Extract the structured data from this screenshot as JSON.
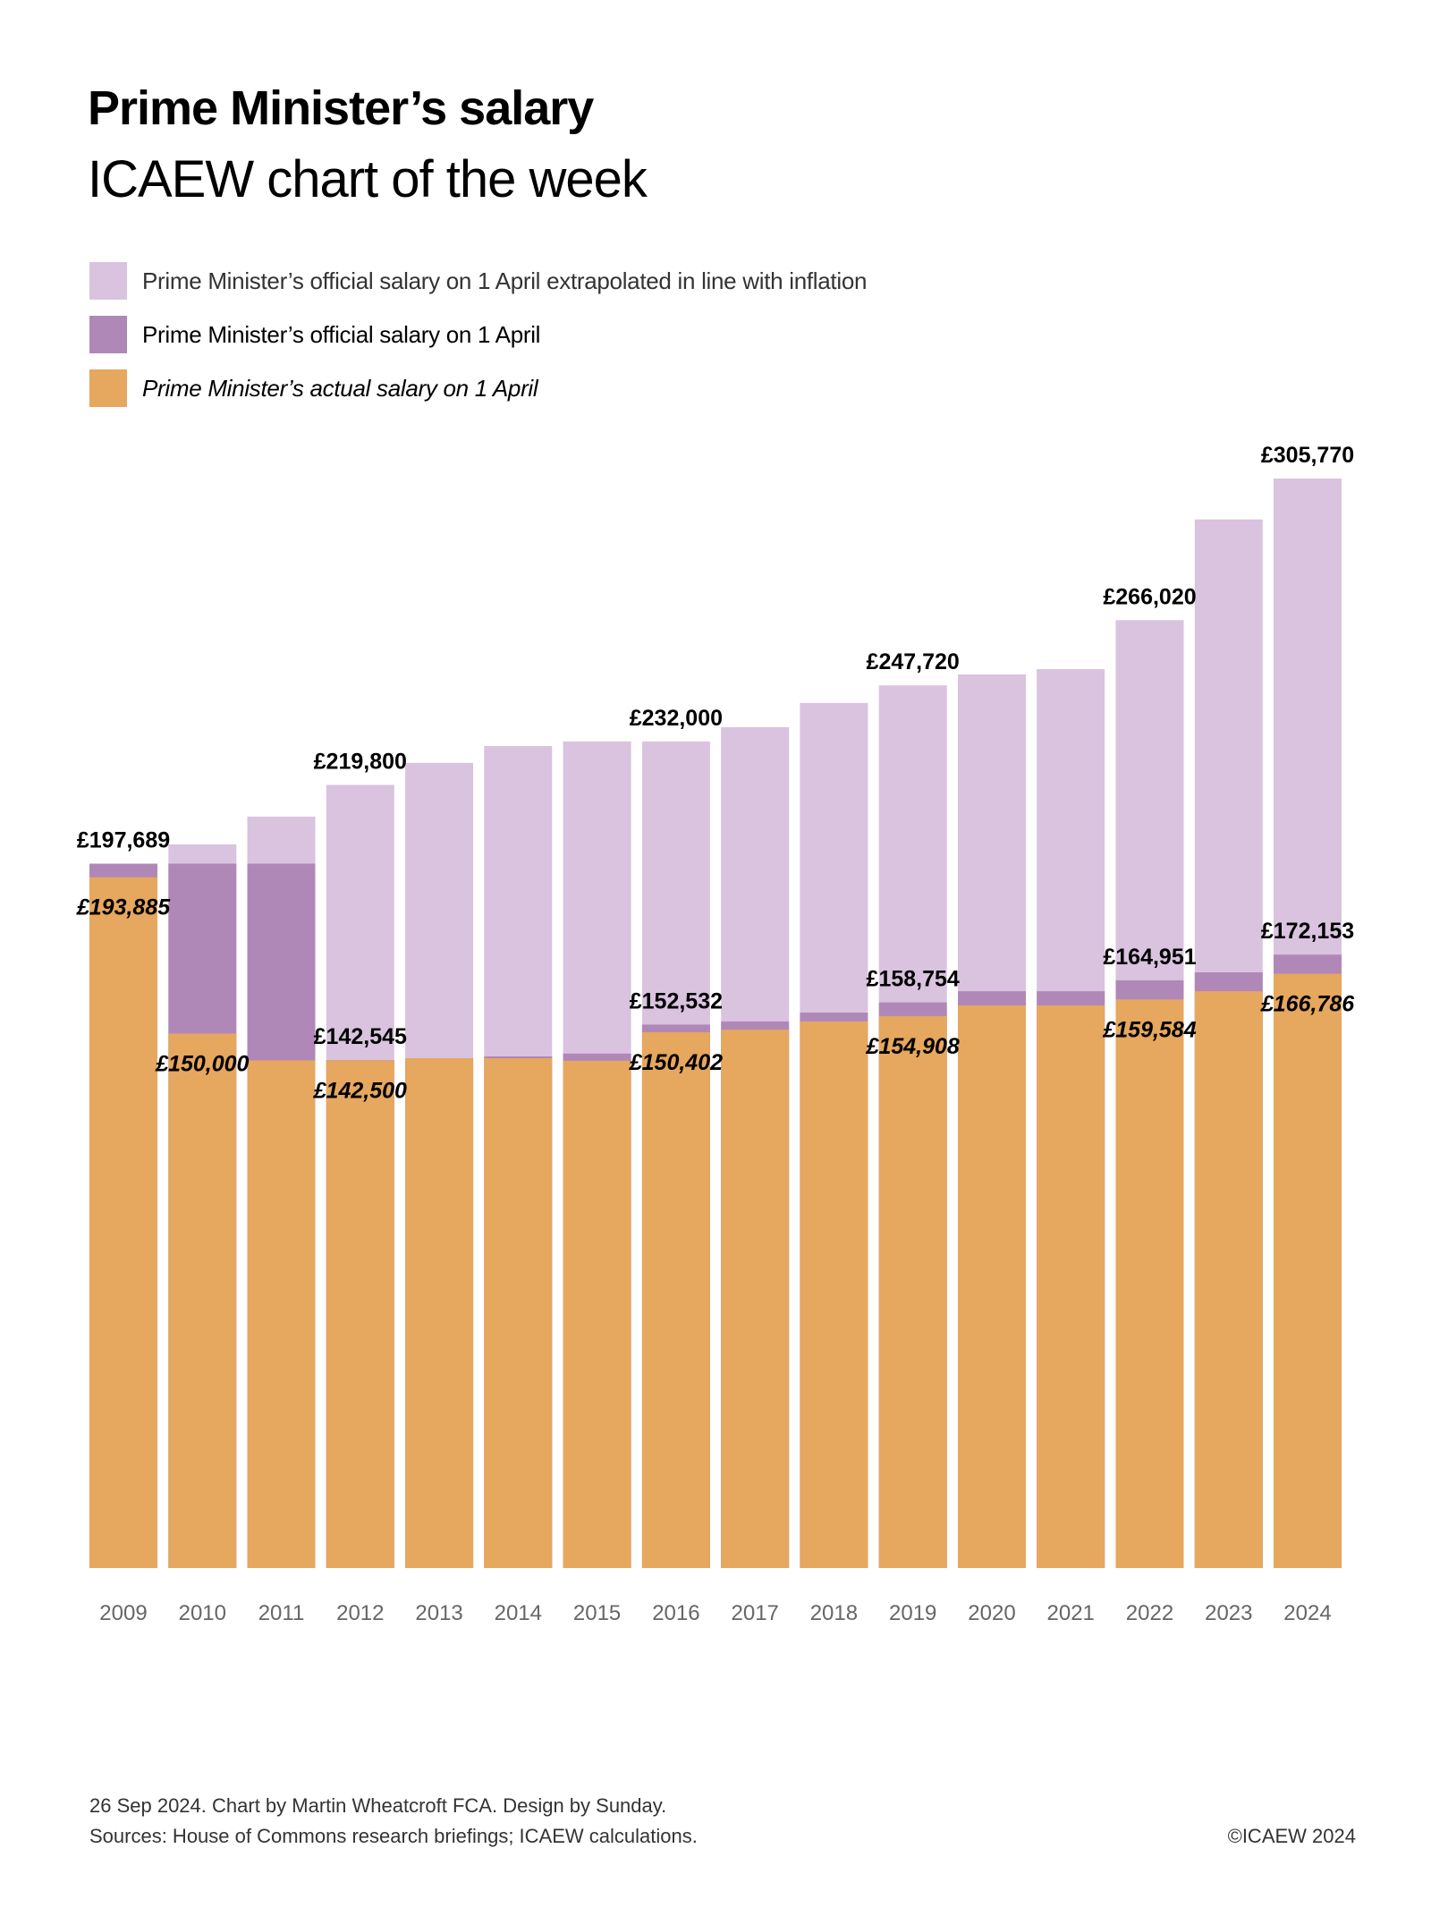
{
  "header": {
    "title": "Prime Minister’s salary",
    "subtitle": "ICAEW chart of the week"
  },
  "legend": [
    {
      "label": "Prime Minister’s official salary on 1 April extrapolated in line with inflation",
      "color": "#D9C3DE"
    },
    {
      "label": "Prime Minister’s official salary on 1 April",
      "color": "#B088B8"
    },
    {
      "label": "Prime Minister’s actual salary on 1 April",
      "color": "#E6A75E"
    }
  ],
  "chart_data": {
    "type": "bar",
    "stacking": "overlapping",
    "title": "Prime Minister’s salary",
    "subtitle": "ICAEW chart of the week",
    "xlabel": "",
    "ylabel": "",
    "ylim": [
      0,
      305770
    ],
    "grid": false,
    "legend_position": "top-left",
    "categories": [
      "2009",
      "2010",
      "2011",
      "2012",
      "2013",
      "2014",
      "2015",
      "2016",
      "2017",
      "2018",
      "2019",
      "2020",
      "2021",
      "2022",
      "2023",
      "2024"
    ],
    "series": [
      {
        "name": "Prime Minister’s official salary on 1 April extrapolated in line with inflation",
        "color": "#D9C3DE",
        "values": [
          197689,
          203100,
          210900,
          219800,
          226000,
          230700,
          232000,
          232000,
          236000,
          242800,
          247720,
          250800,
          252300,
          266020,
          294300,
          305770
        ]
      },
      {
        "name": "Prime Minister’s official salary on 1 April",
        "color": "#B088B8",
        "values": [
          197689,
          197689,
          197689,
          142545,
          143100,
          143600,
          144400,
          152532,
          153400,
          155900,
          158754,
          161900,
          161900,
          164951,
          167200,
          172153
        ]
      },
      {
        "name": "Prime Minister’s actual salary on 1 April",
        "color": "#E6A75E",
        "values": [
          193885,
          150000,
          142500,
          142500,
          143100,
          143100,
          142400,
          150402,
          151100,
          153400,
          154908,
          157900,
          157900,
          159584,
          161900,
          166786
        ]
      }
    ],
    "data_labels": [
      {
        "category": "2009",
        "series": 1,
        "text": "£197,689",
        "position": "above",
        "italic": false
      },
      {
        "category": "2009",
        "series": 2,
        "text": "£193,885",
        "position": "below",
        "italic": true
      },
      {
        "category": "2010",
        "series": 2,
        "text": "£150,000",
        "position": "below",
        "italic": true
      },
      {
        "category": "2012",
        "series": 0,
        "text": "£219,800",
        "position": "above",
        "italic": false
      },
      {
        "category": "2012",
        "series": 1,
        "text": "£142,545",
        "position": "above",
        "italic": false
      },
      {
        "category": "2012",
        "series": 2,
        "text": "£142,500",
        "position": "below",
        "italic": true
      },
      {
        "category": "2016",
        "series": 0,
        "text": "£232,000",
        "position": "above",
        "italic": false
      },
      {
        "category": "2016",
        "series": 1,
        "text": "£152,532",
        "position": "above",
        "italic": false
      },
      {
        "category": "2016",
        "series": 2,
        "text": "£150,402",
        "position": "below",
        "italic": true
      },
      {
        "category": "2019",
        "series": 0,
        "text": "£247,720",
        "position": "above",
        "italic": false
      },
      {
        "category": "2019",
        "series": 1,
        "text": "£158,754",
        "position": "above",
        "italic": false
      },
      {
        "category": "2019",
        "series": 2,
        "text": "£154,908",
        "position": "below",
        "italic": true
      },
      {
        "category": "2022",
        "series": 0,
        "text": "£266,020",
        "position": "above",
        "italic": false
      },
      {
        "category": "2022",
        "series": 1,
        "text": "£164,951",
        "position": "above",
        "italic": false
      },
      {
        "category": "2022",
        "series": 2,
        "text": "£159,584",
        "position": "below",
        "italic": true
      },
      {
        "category": "2024",
        "series": 0,
        "text": "£305,770",
        "position": "above",
        "italic": false
      },
      {
        "category": "2024",
        "series": 1,
        "text": "£172,153",
        "position": "above",
        "italic": false
      },
      {
        "category": "2024",
        "series": 2,
        "text": "£166,786",
        "position": "below",
        "italic": true
      }
    ]
  },
  "footer": {
    "credit": "26 Sep 2024.   Chart by Martin Wheatcroft FCA. Design by Sunday.",
    "sources": "Sources: House of Commons research briefings; ICAEW calculations.",
    "copyright": "©ICAEW 2024"
  }
}
